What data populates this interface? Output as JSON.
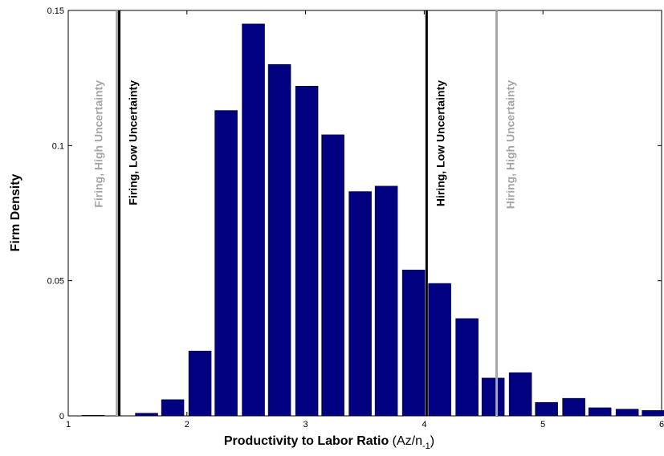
{
  "chart_data": {
    "type": "bar",
    "x_label": "Productivity to Labor Ratio",
    "x_label_unit": [
      "(Az/n",
      "-1",
      ")"
    ],
    "y_label": "Firm Density",
    "x": [
      1.21,
      1.66,
      1.88,
      2.11,
      2.33,
      2.56,
      2.78,
      3.01,
      3.23,
      3.46,
      3.68,
      3.91,
      4.13,
      4.36,
      4.58,
      4.81,
      5.03,
      5.26,
      5.48,
      5.71,
      5.93
    ],
    "values": [
      0.0002,
      0.001,
      0.006,
      0.024,
      0.113,
      0.145,
      0.13,
      0.122,
      0.104,
      0.083,
      0.085,
      0.054,
      0.049,
      0.036,
      0.014,
      0.016,
      0.005,
      0.0065,
      0.003,
      0.0025,
      0.002
    ],
    "color": "#000080",
    "xlim": [
      1,
      6
    ],
    "ylim": [
      0,
      0.15
    ],
    "xticks": [
      1,
      2,
      3,
      4,
      5,
      6
    ],
    "yticks": [
      0,
      0.05,
      0.1,
      0.15
    ],
    "thresholds": [
      {
        "label": "Firing, High Uncertainty",
        "x": 1.41,
        "color": "#a6a6a6",
        "side": "left"
      },
      {
        "label": "Firing, Low Uncertainty",
        "x": 1.43,
        "color": "#000000",
        "side": "right"
      },
      {
        "label": "Hiring, Low Uncertainty",
        "x": 4.02,
        "color": "#000000",
        "side": "right"
      },
      {
        "label": "Hiring, High Uncertainty",
        "x": 4.61,
        "color": "#a6a6a6",
        "side": "right"
      }
    ]
  }
}
